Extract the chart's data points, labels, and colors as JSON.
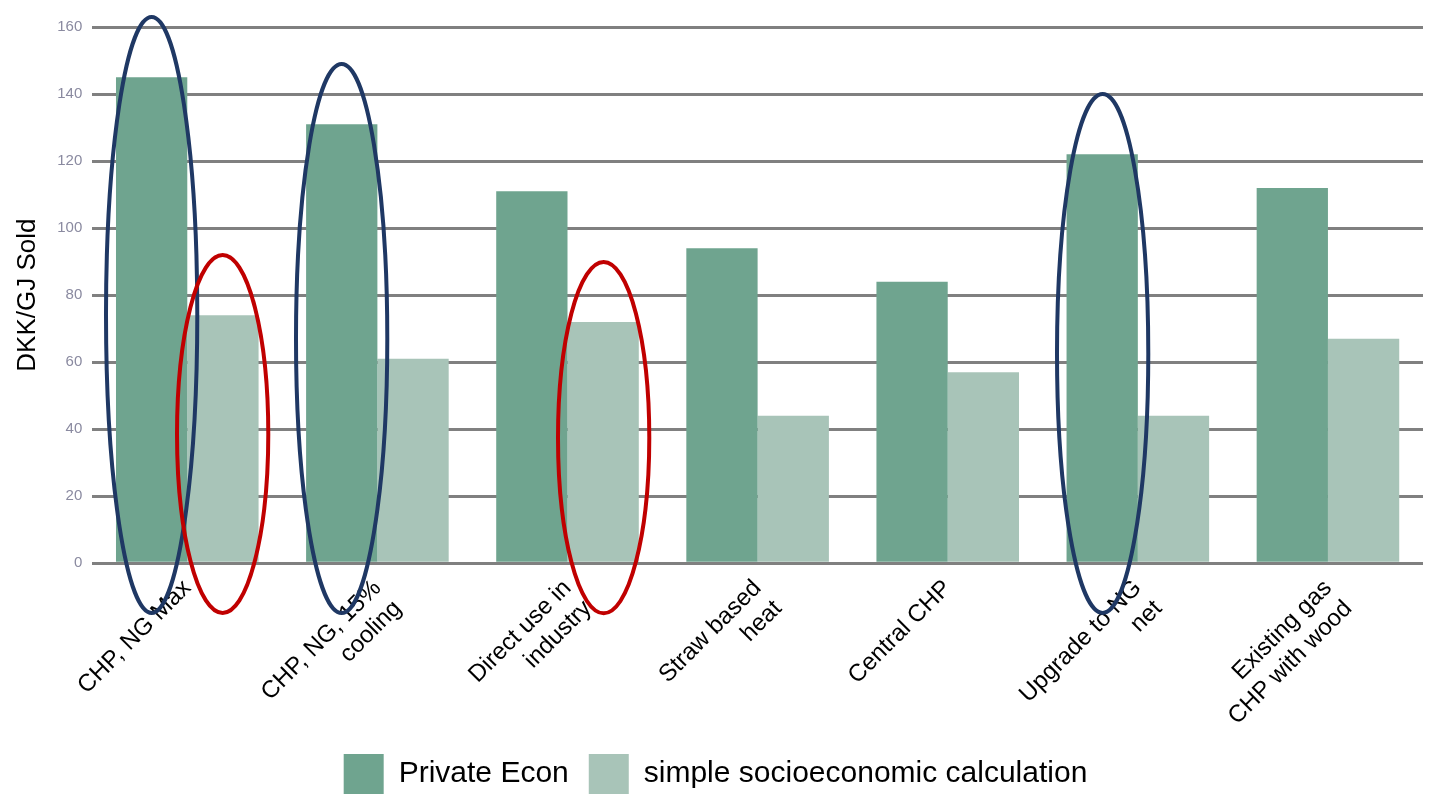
{
  "chart_data": {
    "type": "bar",
    "ylabel": "DKK/GJ Sold",
    "categories": [
      "CHP, NG Max",
      "CHP, NG, 15% cooling",
      "Direct use in industry",
      "Straw based heat",
      "Central CHP",
      "Upgrade to NG net",
      "Existing gas CHP with wood"
    ],
    "series": [
      {
        "name": "Private Econ",
        "color": "#6fa48f",
        "values": [
          145,
          131,
          111,
          94,
          84,
          122,
          112
        ]
      },
      {
        "name": "simple socioeconomic calculation",
        "color": "#a8c4b8",
        "values": [
          74,
          61,
          72,
          44,
          57,
          44,
          67
        ]
      }
    ],
    "ylim": [
      0,
      160
    ],
    "yticks": [
      0,
      20,
      40,
      60,
      80,
      100,
      120,
      140,
      160
    ],
    "grid": "y",
    "legend": "bottom"
  }
}
